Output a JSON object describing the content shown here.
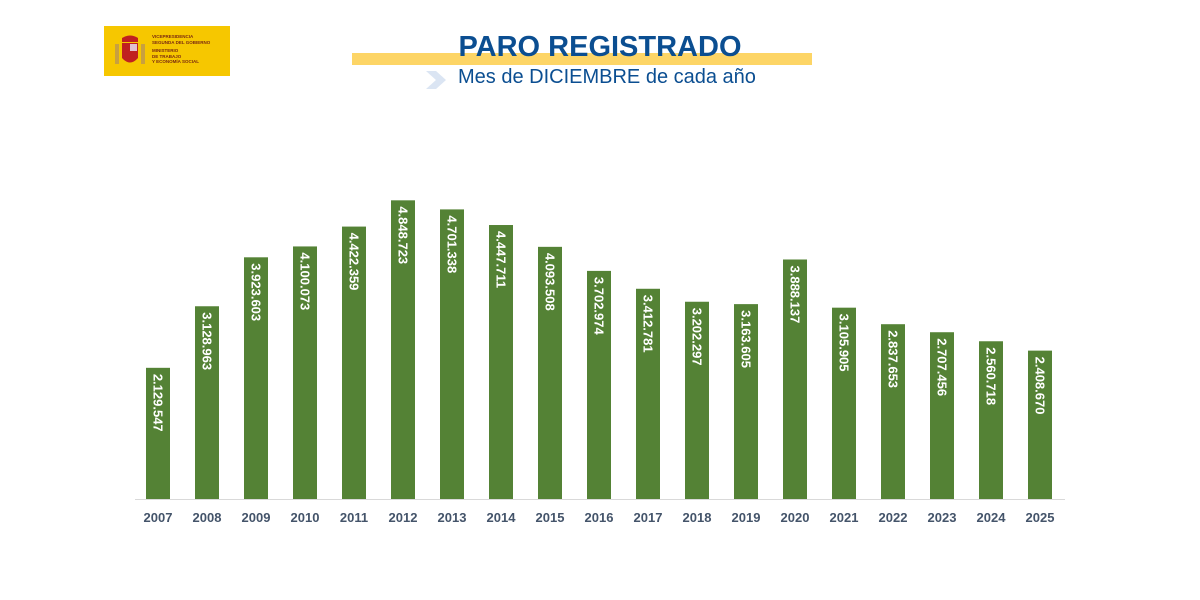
{
  "logo": {
    "lines": [
      "VICEPRESIDENCIA",
      "SEGUNDA DEL GOBIERNO",
      "MINISTERIO",
      "DE TRABAJO",
      "Y ECONOMÍA SOCIAL"
    ],
    "color": "#f6c700"
  },
  "header": {
    "title": "PARO REGISTRADO",
    "subtitle": "Mes de DICIEMBRE de cada año",
    "title_color": "#0b4e91",
    "band_color": "#fdd566",
    "chevron_icon": "chevron-right-icon"
  },
  "chart_data": {
    "type": "bar",
    "title": "PARO REGISTRADO",
    "subtitle": "Mes de DICIEMBRE de cada año",
    "categories": [
      "2007",
      "2008",
      "2009",
      "2010",
      "2011",
      "2012",
      "2013",
      "2014",
      "2015",
      "2016",
      "2017",
      "2018",
      "2019",
      "2020",
      "2021",
      "2022",
      "2023",
      "2024",
      "2025"
    ],
    "values": [
      2129547,
      3128963,
      3923603,
      4100073,
      4422359,
      4848723,
      4701338,
      4447711,
      4093508,
      3702974,
      3412781,
      3202297,
      3163605,
      3888137,
      3105905,
      2837653,
      2707456,
      2560718,
      2408670
    ],
    "labels": [
      "2.129.547",
      "3.128.963",
      "3.923.603",
      "4.100.073",
      "4.422.359",
      "4.848.723",
      "4.701.338",
      "4.447.711",
      "4.093.508",
      "3.702.974",
      "3.412.781",
      "3.202.297",
      "3.163.605",
      "3.888.137",
      "3.105.905",
      "2.837.653",
      "2.707.456",
      "2.560.718",
      "2.408.670"
    ],
    "xlabel": "",
    "ylabel": "",
    "ylim": [
      0,
      5000000
    ],
    "y_axis_visible": false,
    "grid": false,
    "data_labels": "inside-vertical",
    "bar_color": "#548235",
    "label_color": "#ffffff",
    "tick_label_color": "#44546a"
  }
}
